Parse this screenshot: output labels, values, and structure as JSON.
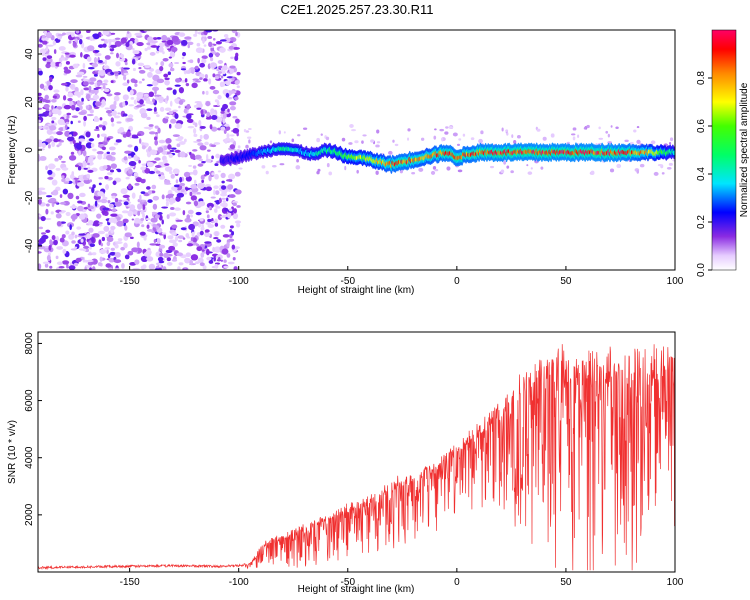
{
  "figure": {
    "title": "C2E1.2025.257.23.30.R11"
  },
  "chart_data": [
    {
      "type": "heatmap",
      "title": "C2E1.2025.257.23.30.R11",
      "xlabel": "Height of straight line (km)",
      "ylabel": "Frequency (Hz)",
      "xlim": [
        -192,
        100
      ],
      "ylim": [
        -50,
        50
      ],
      "x_ticks": [
        -150,
        -100,
        -50,
        0,
        50,
        100
      ],
      "y_ticks": [
        -40,
        -20,
        0,
        20,
        40
      ],
      "noise_region": {
        "x_range": [
          -192,
          -100
        ],
        "description": "scattered low-amplitude speckle"
      },
      "ridge": {
        "x": [
          -105,
          -95,
          -85,
          -80,
          -75,
          -70,
          -65,
          -60,
          -55,
          -50,
          -45,
          -40,
          -35,
          -30,
          -25,
          -20,
          -15,
          -10,
          -5,
          0,
          5,
          10,
          20,
          30,
          40,
          50,
          60,
          70,
          80,
          90,
          100
        ],
        "frequency": [
          -4,
          -2,
          0,
          1,
          0,
          -1,
          -2,
          0,
          -1,
          -3,
          -3,
          -4,
          -5,
          -6,
          -5,
          -4,
          -3,
          -2,
          -1,
          -3,
          -2,
          -1,
          -1,
          -1,
          -1,
          -1,
          -1,
          -1,
          -1,
          -1,
          -1
        ],
        "amplitude": [
          0.2,
          0.25,
          0.35,
          0.45,
          0.4,
          0.35,
          0.4,
          0.45,
          0.5,
          0.6,
          0.65,
          0.7,
          0.75,
          0.85,
          0.9,
          0.85,
          0.8,
          0.85,
          0.9,
          0.9,
          0.88,
          0.92,
          0.95,
          0.95,
          0.95,
          0.95,
          0.95,
          0.95,
          0.9,
          0.7,
          0.4
        ]
      },
      "colorbar": {
        "label": "Normalized spectral amplitude",
        "range": [
          0,
          1
        ],
        "ticks": [
          "0.0",
          "0.2",
          "0.4",
          "0.6",
          "0.8"
        ]
      }
    },
    {
      "type": "line",
      "title": "",
      "xlabel": "Height of straight line (km)",
      "ylabel": "SNR (10 * v/v)",
      "xlim": [
        -192,
        100
      ],
      "ylim": [
        0,
        8400
      ],
      "x_ticks": [
        -150,
        -100,
        -50,
        0,
        50,
        100
      ],
      "y_ticks": [
        2000,
        4000,
        6000,
        8000
      ],
      "series": [
        {
          "name": "SNR",
          "color": "#f03030",
          "x": [
            -192,
            -170,
            -150,
            -130,
            -110,
            -100,
            -95,
            -92,
            -90,
            -85,
            -80,
            -75,
            -70,
            -65,
            -60,
            -55,
            -50,
            -45,
            -40,
            -35,
            -30,
            -25,
            -20,
            -15,
            -10,
            -5,
            0,
            5,
            10,
            15,
            20,
            25,
            28,
            30,
            35,
            40,
            45,
            50,
            55,
            60,
            65,
            70,
            75,
            80,
            85,
            90,
            95,
            100
          ],
          "values": [
            150,
            180,
            200,
            220,
            200,
            220,
            300,
            600,
            1000,
            1200,
            1300,
            1500,
            1700,
            1900,
            2000,
            2200,
            2400,
            2600,
            2700,
            3000,
            3200,
            3400,
            3500,
            3700,
            3900,
            4200,
            4600,
            4900,
            5200,
            5600,
            6000,
            6400,
            6800,
            7200,
            7600,
            7800,
            7900,
            7900,
            7950,
            8000,
            8000,
            8000,
            8000,
            8000,
            8000,
            8000,
            8000,
            7900
          ],
          "dip_depth": [
            0,
            0,
            0,
            0,
            0,
            0,
            100,
            300,
            500,
            600,
            700,
            800,
            900,
            1000,
            1000,
            1100,
            1200,
            1300,
            1200,
            1400,
            1500,
            1600,
            1500,
            1600,
            1500,
            1700,
            1800,
            1800,
            1900,
            2200,
            2600,
            3000,
            3300,
            3600,
            4000,
            4300,
            4600,
            5000,
            5200,
            5500,
            5600,
            5500,
            5400,
            5300,
            5200,
            5000,
            4800,
            4600
          ]
        }
      ]
    }
  ],
  "colors": {
    "line": "#f03030",
    "axes": "#000000",
    "background": "#ffffff"
  }
}
